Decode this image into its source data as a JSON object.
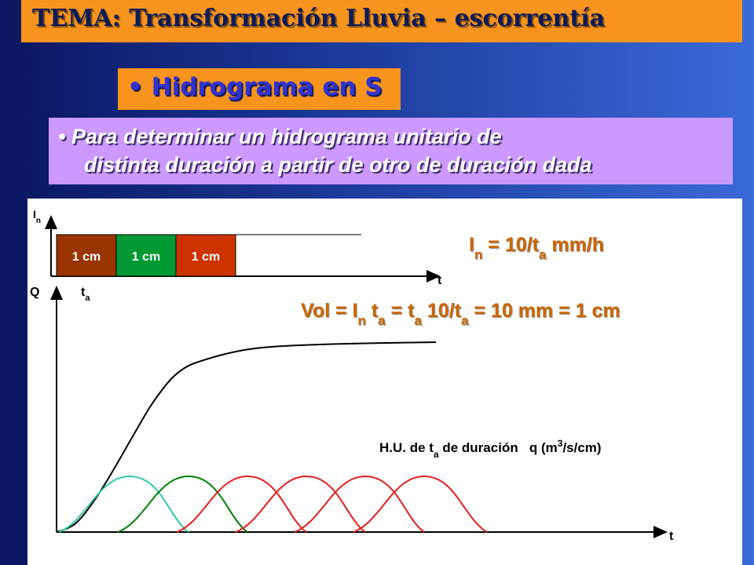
{
  "title": "TEMA: Transformación Lluvia – escorrentía",
  "subtitle": {
    "bullet": "•",
    "text": "Hidrograma en S"
  },
  "description": {
    "bullet": "•",
    "lines": [
      "Para determinar un hidrograma unitario de",
      "distinta duración a partir de otro de duración dada"
    ]
  },
  "diagram": {
    "rain_axis": {
      "y_label": [
        "I",
        "n"
      ],
      "x_label": "t"
    },
    "pulses": [
      "1 cm",
      "1 cm",
      "1 cm"
    ],
    "intensity_formula": [
      "I",
      "n",
      " = 10/t",
      "a",
      " mm/h"
    ],
    "volume_formula": [
      "Vol = I",
      "n",
      " t",
      "a",
      " = t",
      "a",
      " 10/t",
      "a",
      " = 10 mm = 1 cm"
    ],
    "flow_axis": {
      "y_label": "Q",
      "x_label": "t",
      "duration_label": [
        "t",
        "a"
      ]
    },
    "unit_hydrograph_label": [
      "H.U. de t",
      "a",
      " de duración   q (m",
      "3",
      "/s/cm)"
    ]
  }
}
